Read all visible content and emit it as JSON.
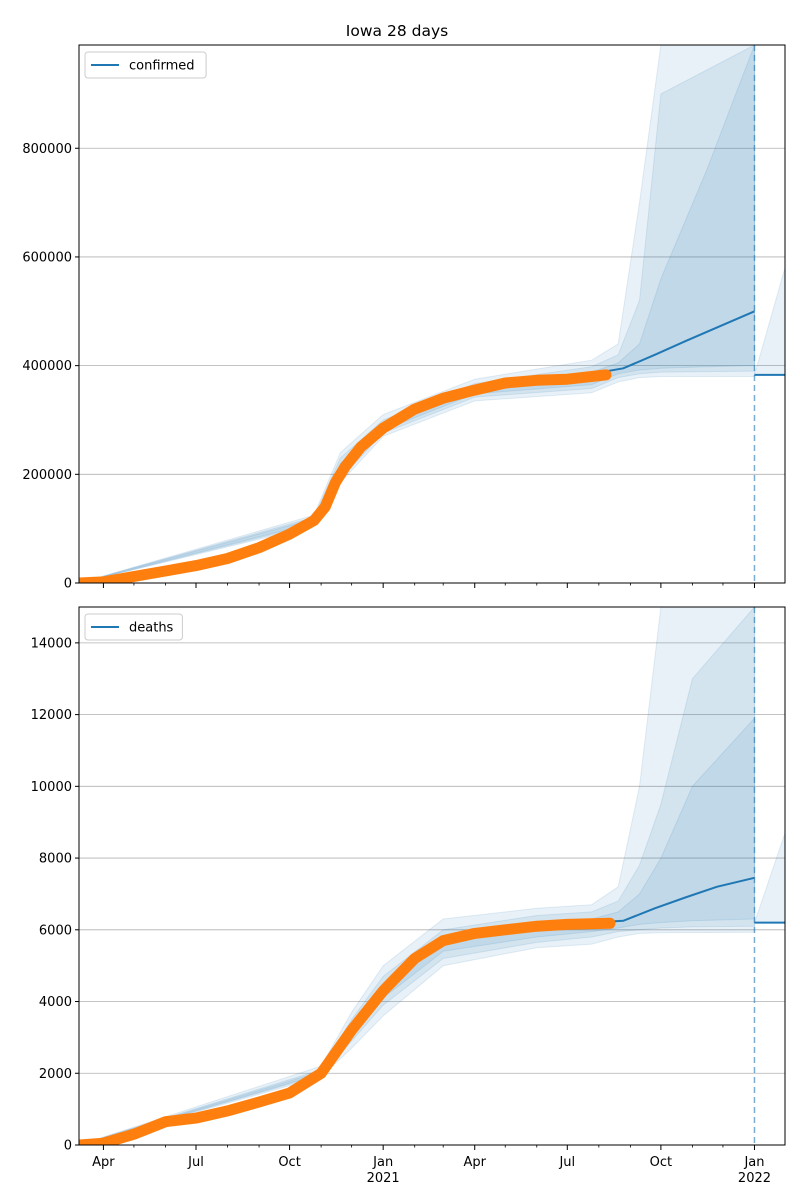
{
  "chart_data": [
    {
      "type": "line",
      "title": "Iowa 28 days",
      "xlabel": "",
      "ylabel": "",
      "ylim": [
        0,
        990000
      ],
      "yticks": [
        0,
        200000,
        400000,
        600000,
        800000
      ],
      "ytick_labels": [
        "0",
        "200000",
        "400000",
        "600000",
        "800000"
      ],
      "grid": "horizontal",
      "legend": {
        "position": "top-left",
        "entries": [
          "confirmed"
        ]
      },
      "colors": {
        "forecast": "#1f77b4",
        "observed": "#ff7f0e",
        "band": "#1f77b4"
      },
      "series": [
        {
          "name": "confirmed",
          "role": "forecast_median",
          "x": [
            "2021-07-25",
            "2021-08-25",
            "2021-09-25",
            "2021-10-25",
            "2021-11-25",
            "2022-01-01"
          ],
          "y": [
            385000,
            395000,
            420000,
            445000,
            470000,
            500000
          ]
        },
        {
          "role": "observed",
          "x": [
            "2020-03-08",
            "2020-04-01",
            "2020-05-01",
            "2020-06-01",
            "2020-07-01",
            "2020-08-01",
            "2020-09-01",
            "2020-10-01",
            "2020-10-25",
            "2020-11-05",
            "2020-11-15",
            "2020-11-25",
            "2020-12-10",
            "2021-01-01",
            "2021-02-01",
            "2021-03-01",
            "2021-04-01",
            "2021-05-01",
            "2021-06-01",
            "2021-07-01",
            "2021-08-08"
          ],
          "y": [
            0,
            2000,
            12000,
            22000,
            32000,
            45000,
            65000,
            90000,
            115000,
            140000,
            185000,
            215000,
            250000,
            285000,
            320000,
            340000,
            355000,
            368000,
            373000,
            375000,
            383000
          ]
        },
        {
          "role": "post_period_projection",
          "x": [
            "2022-01-01",
            "2022-01-31"
          ],
          "y": [
            383000,
            383000
          ]
        }
      ],
      "bands": [
        {
          "x": [
            "2020-03-08",
            "2020-10-25",
            "2020-11-20",
            "2021-01-01",
            "2021-04-01",
            "2021-07-25",
            "2021-08-20",
            "2021-09-10",
            "2021-10-01",
            "2022-01-01"
          ],
          "lower": [
            0,
            105000,
            185000,
            270000,
            335000,
            350000,
            370000,
            378000,
            380000,
            380000
          ],
          "upper": [
            0,
            125000,
            240000,
            310000,
            375000,
            410000,
            440000,
            700000,
            990000,
            990000
          ]
        },
        {
          "x": [
            "2020-03-08",
            "2020-10-25",
            "2020-11-20",
            "2021-01-01",
            "2021-04-01",
            "2021-07-25",
            "2021-08-20",
            "2021-09-10",
            "2021-10-01",
            "2022-01-01"
          ],
          "lower": [
            0,
            108000,
            192000,
            276000,
            342000,
            358000,
            378000,
            385000,
            388000,
            390000
          ],
          "upper": [
            0,
            121000,
            230000,
            300000,
            367000,
            398000,
            420000,
            520000,
            900000,
            990000
          ]
        },
        {
          "x": [
            "2020-03-08",
            "2020-10-25",
            "2020-11-20",
            "2021-01-01",
            "2021-04-01",
            "2021-07-25",
            "2021-08-20",
            "2021-09-10",
            "2021-10-01",
            "2021-11-15",
            "2022-01-01"
          ],
          "lower": [
            0,
            111000,
            198000,
            281000,
            348000,
            365000,
            385000,
            392000,
            395000,
            398000,
            400000
          ],
          "upper": [
            0,
            118000,
            220000,
            292000,
            360000,
            388000,
            405000,
            440000,
            560000,
            760000,
            990000
          ]
        }
      ],
      "band_after_cutoff": {
        "x": [
          "2022-01-01",
          "2022-01-31"
        ],
        "lower": [
          383000,
          383000
        ],
        "upper": [
          383000,
          580000
        ]
      },
      "cutoff_date": "2022-01-01"
    },
    {
      "type": "line",
      "xlabel": "",
      "ylabel": "",
      "ylim": [
        0,
        15000
      ],
      "yticks": [
        0,
        2000,
        4000,
        6000,
        8000,
        10000,
        12000,
        14000
      ],
      "ytick_labels": [
        "0",
        "2000",
        "4000",
        "6000",
        "8000",
        "10000",
        "12000",
        "14000"
      ],
      "grid": "horizontal",
      "legend": {
        "position": "top-left",
        "entries": [
          "deaths"
        ]
      },
      "colors": {
        "forecast": "#1f77b4",
        "observed": "#ff7f0e",
        "band": "#1f77b4"
      },
      "series": [
        {
          "name": "deaths",
          "role": "forecast_median",
          "x": [
            "2021-07-25",
            "2021-08-25",
            "2021-09-25",
            "2021-10-25",
            "2021-11-25",
            "2022-01-01"
          ],
          "y": [
            6200,
            6250,
            6600,
            6900,
            7200,
            7450
          ]
        },
        {
          "role": "observed",
          "x": [
            "2020-03-08",
            "2020-04-01",
            "2020-05-01",
            "2020-06-01",
            "2020-07-01",
            "2020-08-01",
            "2020-09-01",
            "2020-10-01",
            "2020-11-01",
            "2020-12-01",
            "2021-01-01",
            "2021-02-01",
            "2021-03-01",
            "2021-04-01",
            "2021-05-01",
            "2021-06-01",
            "2021-07-01",
            "2021-08-12"
          ],
          "y": [
            0,
            50,
            300,
            650,
            750,
            950,
            1200,
            1450,
            2000,
            3200,
            4300,
            5200,
            5700,
            5900,
            6000,
            6100,
            6150,
            6180
          ]
        },
        {
          "role": "post_period_projection",
          "x": [
            "2022-01-01",
            "2022-01-31"
          ],
          "y": [
            6200,
            6200
          ]
        }
      ],
      "bands": [
        {
          "x": [
            "2020-03-08",
            "2020-11-01",
            "2020-12-01",
            "2021-01-01",
            "2021-03-01",
            "2021-06-01",
            "2021-07-25",
            "2021-08-20",
            "2021-09-10",
            "2021-10-01",
            "2022-01-01"
          ],
          "lower": [
            0,
            1900,
            2700,
            3600,
            5000,
            5500,
            5600,
            5800,
            5900,
            5920,
            5930
          ],
          "upper": [
            0,
            2200,
            3700,
            5000,
            6300,
            6600,
            6700,
            7200,
            10000,
            15000,
            15000
          ]
        },
        {
          "x": [
            "2020-03-08",
            "2020-11-01",
            "2020-12-01",
            "2021-01-01",
            "2021-03-01",
            "2021-06-01",
            "2021-07-25",
            "2021-08-20",
            "2021-09-10",
            "2021-10-01",
            "2021-11-01",
            "2022-01-01"
          ],
          "lower": [
            0,
            1950,
            2900,
            3900,
            5200,
            5650,
            5800,
            5950,
            6000,
            6050,
            6080,
            6100
          ],
          "upper": [
            0,
            2100,
            3500,
            4700,
            6000,
            6400,
            6500,
            6800,
            7800,
            9500,
            13000,
            15000
          ]
        },
        {
          "x": [
            "2020-03-08",
            "2020-11-01",
            "2020-12-01",
            "2021-01-01",
            "2021-03-01",
            "2021-06-01",
            "2021-07-25",
            "2021-08-20",
            "2021-09-10",
            "2021-10-01",
            "2021-11-01",
            "2022-01-01"
          ],
          "lower": [
            0,
            1980,
            3000,
            4100,
            5400,
            5800,
            5950,
            6050,
            6150,
            6200,
            6250,
            6300
          ],
          "upper": [
            0,
            2050,
            3300,
            4500,
            5800,
            6200,
            6300,
            6500,
            7000,
            8000,
            10000,
            11900
          ]
        }
      ],
      "band_after_cutoff": {
        "x": [
          "2022-01-01",
          "2022-01-31"
        ],
        "lower": [
          6200,
          6200
        ],
        "upper": [
          6200,
          8700
        ]
      },
      "cutoff_date": "2022-01-01"
    }
  ],
  "x_axis": {
    "xlim": [
      "2020-03-08",
      "2022-01-31"
    ],
    "major_ticks": [
      {
        "date": "2020-04-01",
        "label": "Apr",
        "sublabel": ""
      },
      {
        "date": "2020-07-01",
        "label": "Jul",
        "sublabel": ""
      },
      {
        "date": "2020-10-01",
        "label": "Oct",
        "sublabel": ""
      },
      {
        "date": "2021-01-01",
        "label": "Jan",
        "sublabel": "2021"
      },
      {
        "date": "2021-04-01",
        "label": "Apr",
        "sublabel": ""
      },
      {
        "date": "2021-07-01",
        "label": "Jul",
        "sublabel": ""
      },
      {
        "date": "2021-10-01",
        "label": "Oct",
        "sublabel": ""
      },
      {
        "date": "2022-01-01",
        "label": "Jan",
        "sublabel": "2022"
      }
    ],
    "minor_ticks": [
      "2020-05-01",
      "2020-06-01",
      "2020-08-01",
      "2020-09-01",
      "2020-11-01",
      "2020-12-01",
      "2021-02-01",
      "2021-03-01",
      "2021-05-01",
      "2021-06-01",
      "2021-08-01",
      "2021-09-01",
      "2021-11-01",
      "2021-12-01"
    ]
  }
}
